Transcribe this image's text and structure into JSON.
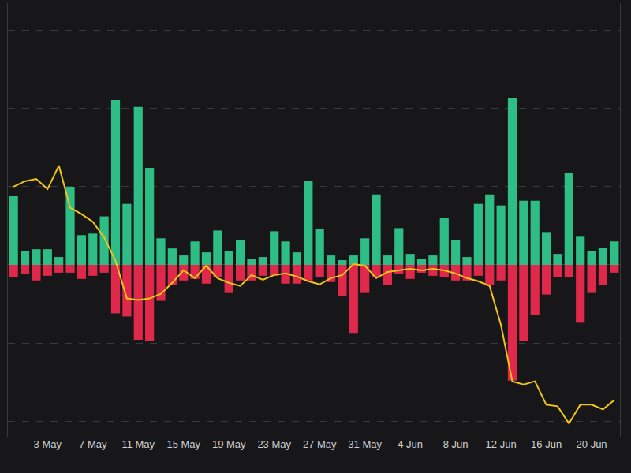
{
  "chart_data": {
    "type": "bar",
    "categories": [
      null,
      null,
      null,
      "3 May",
      null,
      null,
      null,
      "7 May",
      null,
      null,
      null,
      "11 May",
      null,
      null,
      null,
      "15 May",
      null,
      null,
      null,
      "19 May",
      null,
      null,
      null,
      "23 May",
      null,
      null,
      null,
      "27 May",
      null,
      null,
      null,
      "31 May",
      null,
      null,
      null,
      "4 Jun",
      null,
      null,
      null,
      "8 Jun",
      null,
      null,
      null,
      "12 Jun",
      null,
      null,
      null,
      "16 Jun",
      null,
      null,
      null,
      "20 Jun",
      null,
      null
    ],
    "series": [
      {
        "type": "bar",
        "color": "#2ebd85",
        "values": [
          8.8,
          1.8,
          2.0,
          2.0,
          1.0,
          10.0,
          3.8,
          4.0,
          6.2,
          21.1,
          7.8,
          20.2,
          12.4,
          3.4,
          2.1,
          1.2,
          3.0,
          1.6,
          4.4,
          1.8,
          3.2,
          0.8,
          1.0,
          4.3,
          3.0,
          1.6,
          10.7,
          4.6,
          1.2,
          0.6,
          1.2,
          3.4,
          9.0,
          1.2,
          4.7,
          1.4,
          0.8,
          1.2,
          6.0,
          3.2,
          1.0,
          7.8,
          9.0,
          7.6,
          21.4,
          8.2,
          8.2,
          4.2,
          1.4,
          11.8,
          3.6,
          1.8,
          2.2,
          3.0
        ]
      },
      {
        "type": "bar",
        "color": "#e0294a",
        "values": [
          -1.6,
          -1.2,
          -2.0,
          -1.4,
          -1.0,
          -1.0,
          -1.8,
          -1.4,
          -1.0,
          -6.2,
          -6.6,
          -9.6,
          -9.8,
          -4.6,
          -2.6,
          -2.0,
          -1.8,
          -2.4,
          -1.6,
          -3.6,
          -2.0,
          -2.0,
          -1.4,
          -1.4,
          -2.4,
          -2.4,
          -2.0,
          -1.6,
          -2.2,
          -4.0,
          -8.8,
          -3.6,
          -1.6,
          -2.6,
          -1.2,
          -1.8,
          -1.0,
          -1.4,
          -1.6,
          -2.0,
          -2.0,
          -1.4,
          -2.6,
          -2.0,
          -14.8,
          -9.8,
          -6.4,
          -3.8,
          -1.6,
          -1.6,
          -7.4,
          -3.6,
          -2.6,
          -1.0
        ]
      },
      {
        "type": "line",
        "axis": "y2",
        "color": "#f0c419",
        "values": [
          32.0,
          32.7,
          33.0,
          31.7,
          34.7,
          29.3,
          28.5,
          27.5,
          25.5,
          22.5,
          17.7,
          17.5,
          17.7,
          18.3,
          19.7,
          21.3,
          20.3,
          21.9,
          20.3,
          19.7,
          19.3,
          20.7,
          20.1,
          20.7,
          20.9,
          20.5,
          19.9,
          19.5,
          20.3,
          20.7,
          22.1,
          21.9,
          20.3,
          21.1,
          21.3,
          21.5,
          21.3,
          21.5,
          21.3,
          20.9,
          20.3,
          19.9,
          19.3,
          14.3,
          7.1,
          6.7,
          7.1,
          4.1,
          3.9,
          1.7,
          4.1,
          4.1,
          3.5,
          4.7
        ]
      }
    ],
    "ylim": [
      -22,
      33.5
    ],
    "yticks": [
      -20,
      -10,
      0,
      10,
      20,
      30
    ],
    "y2lim": [
      0,
      55.5
    ],
    "y2ticks": [
      0,
      10,
      20,
      30,
      40,
      50
    ],
    "grid": true,
    "tick_labels": "x"
  }
}
